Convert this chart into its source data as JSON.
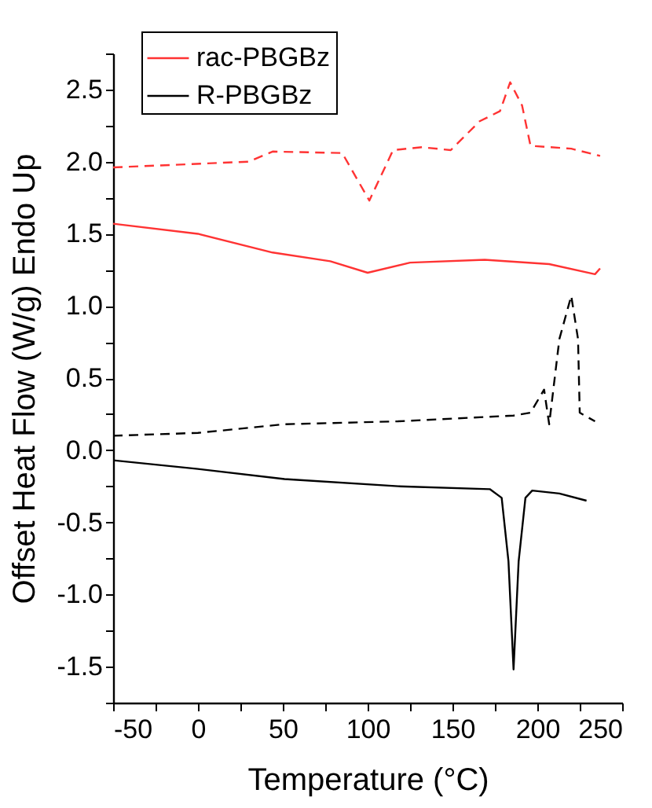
{
  "chart_data": {
    "type": "line",
    "xlabel": "Temperature (°C)",
    "ylabel": "Offset Heat Flow (W/g) Endo Up",
    "xlim": [
      -50,
      250
    ],
    "xticks": [
      -50,
      {
        "value": -25,
        "label": null
      },
      0,
      {
        "value": 25,
        "label": null
      },
      50,
      {
        "value": 75,
        "label": null
      },
      100,
      {
        "value": 125,
        "label": null
      },
      150,
      {
        "value": 175,
        "label": null
      },
      200,
      {
        "value": 225,
        "label": null
      },
      250
    ],
    "ylim": [
      -1.75,
      2.75
    ],
    "yticks": [
      {
        "value": -1.75,
        "label": null
      },
      {
        "value": -1.5,
        "label": "-1.5"
      },
      {
        "value": -1.25,
        "label": null
      },
      {
        "value": -1,
        "label": "-1.0"
      },
      {
        "value": -0.75,
        "label": null
      },
      {
        "value": -0.5,
        "label": "-0.5"
      },
      {
        "value": -0.25,
        "label": null
      },
      {
        "value": 0,
        "label": "0.0"
      },
      {
        "value": 0.25,
        "label": null
      },
      {
        "value": 0.5,
        "label": "0.5"
      },
      {
        "value": 0.75,
        "label": null
      },
      {
        "value": 1,
        "label": "1.0"
      },
      {
        "value": 1.25,
        "label": null
      },
      {
        "value": 1.5,
        "label": "1.5"
      },
      {
        "value": 1.75,
        "label": null
      },
      {
        "value": 2,
        "label": "2.0"
      },
      {
        "value": 2.25,
        "label": null
      },
      {
        "value": 2.5,
        "label": "2.5"
      },
      {
        "value": 2.75,
        "label": null
      }
    ],
    "grid": false,
    "legend": "top left",
    "marker": "none",
    "series": [
      {
        "name": "rac-PBGBz",
        "color": "#ff3333",
        "line_style": "solid",
        "x": [
          -50,
          0,
          44,
          78,
          100,
          125,
          169,
          207,
          234,
          237
        ],
        "values": [
          1.57,
          1.5,
          1.37,
          1.31,
          1.23,
          1.3,
          1.32,
          1.29,
          1.22,
          1.26
        ]
      },
      {
        "name": "R-PBGBz",
        "color": "#000000",
        "line_style": "solid",
        "x": [
          -50,
          0,
          51,
          118,
          172,
          179,
          183,
          186,
          189,
          193,
          197,
          213,
          229
        ],
        "values": [
          -0.07,
          -0.13,
          -0.2,
          -0.25,
          -0.27,
          -0.33,
          -0.77,
          -1.52,
          -0.77,
          -0.33,
          -0.28,
          -0.3,
          -0.35
        ]
      },
      {
        "color": "#ff3333",
        "line_style": "dashed",
        "x": [
          -50,
          30,
          44,
          85,
          101,
          115,
          132,
          149,
          166,
          178,
          184,
          191,
          196,
          220,
          237
        ],
        "values": [
          1.96,
          2.0,
          2.07,
          2.06,
          1.73,
          2.08,
          2.1,
          2.08,
          2.28,
          2.35,
          2.55,
          2.39,
          2.11,
          2.09,
          2.04
        ]
      },
      {
        "color": "#000000",
        "line_style": "dashed",
        "x": [
          -50,
          0,
          51,
          118,
          186,
          196,
          204,
          207,
          213,
          220,
          224,
          225,
          234
        ],
        "values": [
          0.1,
          0.12,
          0.18,
          0.2,
          0.24,
          0.26,
          0.42,
          0.18,
          0.77,
          1.07,
          0.77,
          0.26,
          0.2
        ]
      }
    ]
  }
}
